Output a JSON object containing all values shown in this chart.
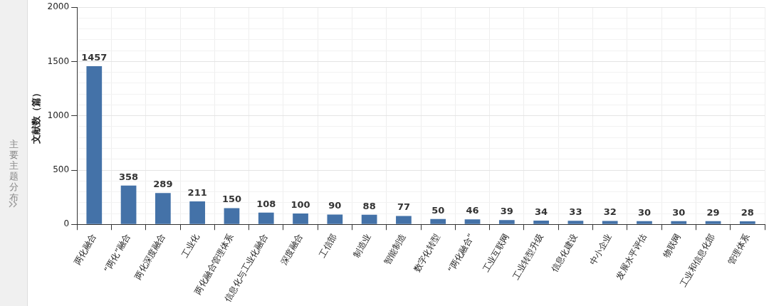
{
  "chart_data": {
    "type": "bar",
    "ylabel": "文献数（篇）",
    "categories": [
      "两化融合",
      "“两化”融合",
      "两化深度融合",
      "工业化",
      "两化融合管理体系",
      "信息化与工业化融合",
      "深度融合",
      "工信部",
      "制造业",
      "智能制造",
      "数字化转型",
      "“两化融合”",
      "工业互联网",
      "工业转型升级",
      "信息化建设",
      "中小企业",
      "发展水平评估",
      "物联网",
      "工业和信息化部",
      "管理体系"
    ],
    "values": [
      1457,
      358,
      289,
      211,
      150,
      108,
      100,
      90,
      88,
      77,
      50,
      46,
      39,
      34,
      33,
      32,
      30,
      30,
      29,
      28
    ],
    "color": "#4472a8",
    "data_labels": true,
    "grid": true,
    "legend": false,
    "ylim": [
      0,
      2000
    ],
    "yticks": [
      0,
      {
        "value": 100,
        "label": null
      },
      {
        "value": 200,
        "label": null
      },
      {
        "value": 300,
        "label": null
      },
      {
        "value": 400,
        "label": null
      },
      500,
      {
        "value": 600,
        "label": null
      },
      {
        "value": 700,
        "label": null
      },
      {
        "value": 800,
        "label": null
      },
      {
        "value": 900,
        "label": null
      },
      1000,
      {
        "value": 1100,
        "label": null
      },
      {
        "value": 1200,
        "label": null
      },
      {
        "value": 1300,
        "label": null
      },
      {
        "value": 1400,
        "label": null
      },
      1500,
      {
        "value": 1600,
        "label": null
      },
      {
        "value": 1700,
        "label": null
      },
      {
        "value": 1800,
        "label": null
      },
      {
        "value": 1900,
        "label": null
      },
      2000
    ],
    "annotations": [
      "主要主题分布"
    ]
  }
}
